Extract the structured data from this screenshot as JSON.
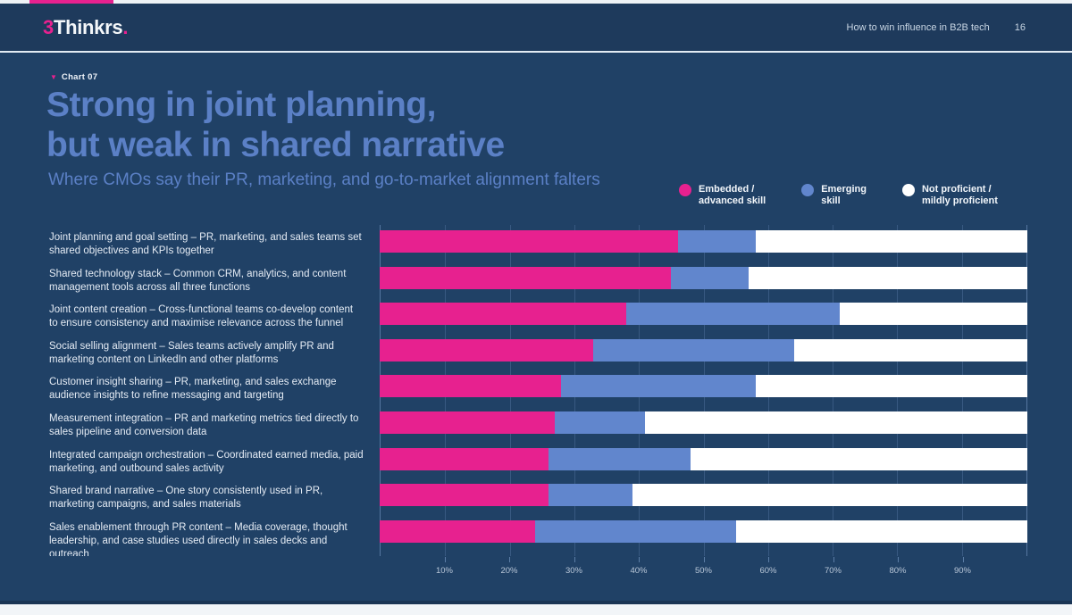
{
  "header": {
    "logo_prefix": "3",
    "logo_name": "Thinkrs",
    "logo_suffix": ".",
    "doc_title": "How to win influence in B2B tech",
    "page_number": "16"
  },
  "chart_header": {
    "kicker": "Chart 07",
    "kicker_marker": "▼",
    "title_line1": "Strong in joint planning,",
    "title_line2": "but weak in shared narrative",
    "subtitle": "Where CMOs say their PR, marketing, and go-to-market alignment falters"
  },
  "legend": {
    "items": [
      {
        "label": "Embedded /\nadvanced skill",
        "color": "#e7218f"
      },
      {
        "label": "Emerging\nskill",
        "color": "#6186cd"
      },
      {
        "label": "Not proficient /\nmildly proficient",
        "color": "#ffffff"
      }
    ]
  },
  "colors": {
    "header_bg": "#1e3a5c",
    "slide_bg": "#204166",
    "accent_pink": "#e7218f",
    "accent_blue": "#6186cd",
    "title_blue": "#5b80c6"
  },
  "chart_data": {
    "type": "bar",
    "orientation": "horizontal",
    "stacked": true,
    "unit": "%",
    "xlim": [
      0,
      100
    ],
    "grid": true,
    "x_ticks": [
      "10%",
      "20%",
      "30%",
      "40%",
      "50%",
      "60%",
      "70%",
      "80%",
      "90%"
    ],
    "categories": [
      "Joint planning and goal setting – PR, marketing, and sales teams set shared objectives and KPIs together",
      "Shared technology stack – Common CRM, analytics, and content management tools across all three functions",
      "Joint content creation – Cross-functional teams co-develop content to ensure consistency and maximise relevance across the funnel",
      "Social selling alignment – Sales teams actively amplify PR and marketing content on LinkedIn and other platforms",
      "Customer insight sharing – PR, marketing, and sales exchange audience insights to refine messaging and targeting",
      "Measurement integration – PR and marketing metrics tied directly to sales pipeline and conversion data",
      "Integrated campaign orchestration – Coordinated earned media, paid marketing, and outbound sales activity",
      "Shared brand narrative – One story consistently used in PR, marketing campaigns, and sales materials",
      "Sales enablement through PR content – Media coverage, thought leadership, and case studies used directly in sales decks and outreach"
    ],
    "series": [
      {
        "name": "Embedded / advanced skill",
        "key": "embedded-advanced-skill",
        "color": "#e7218f",
        "values": [
          46,
          45,
          38,
          33,
          28,
          27,
          26,
          26,
          24
        ]
      },
      {
        "name": "Emerging skill",
        "key": "emerging-skill",
        "color": "#6186cd",
        "values": [
          12,
          12,
          33,
          31,
          30,
          14,
          22,
          13,
          31
        ]
      },
      {
        "name": "Not proficient / mildly proficient",
        "key": "not-proficient",
        "color": "#ffffff",
        "values": [
          42,
          43,
          29,
          36,
          42,
          59,
          52,
          61,
          45
        ]
      }
    ]
  }
}
